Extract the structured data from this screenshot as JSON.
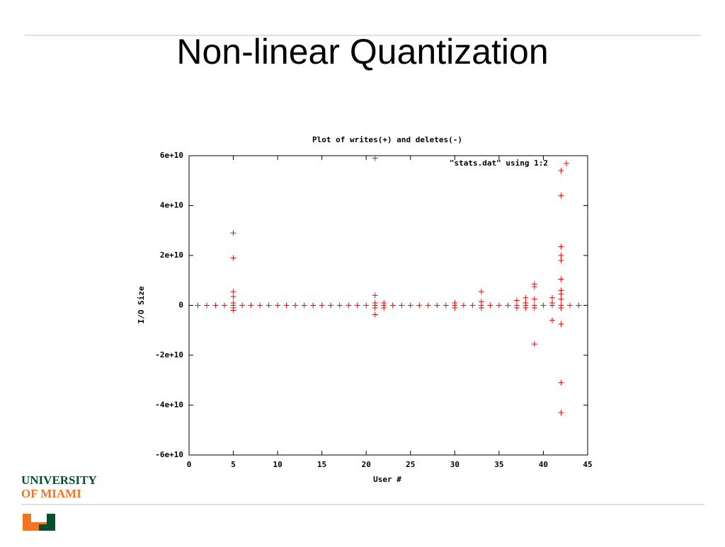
{
  "slide": {
    "title": "Non-linear Quantization",
    "logo_line1": "UNIVERSITY",
    "logo_line2": "OF MIAMI"
  },
  "chart_data": {
    "type": "scatter",
    "title": "Plot of writes(+) and deletes(-)",
    "x_label": "User #",
    "y_label": "I/O Size",
    "xlim": [
      0,
      45
    ],
    "xticks": [
      0,
      5,
      10,
      15,
      20,
      25,
      30,
      35,
      40,
      45
    ],
    "ylim": [
      -60000000000,
      60000000000
    ],
    "yticks": [
      {
        "value": -60000000000,
        "label": "-6e+10"
      },
      {
        "value": -40000000000,
        "label": "-4e+10"
      },
      {
        "value": -20000000000,
        "label": "-2e+10"
      },
      0,
      {
        "value": 20000000000,
        "label": "2e+10"
      },
      {
        "value": 40000000000,
        "label": "4e+10"
      },
      {
        "value": 60000000000,
        "label": "6e+10"
      }
    ],
    "legend": "top-right",
    "series": [
      {
        "name": "\"stats.dat\" using 1:2",
        "color": "#ff0000",
        "x": [
          1,
          2,
          3,
          4,
          5,
          6,
          7,
          8,
          9,
          10,
          11,
          12,
          13,
          14,
          15,
          16,
          17,
          18,
          19,
          20,
          21,
          22,
          23,
          24,
          25,
          26,
          27,
          28,
          29,
          30,
          31,
          32,
          33,
          34,
          35,
          36,
          37,
          38,
          39,
          40,
          41,
          42,
          43,
          44,
          5,
          5,
          5,
          5,
          5,
          5,
          5,
          21,
          21,
          21,
          21,
          21,
          22,
          22,
          30,
          30,
          33,
          33,
          33,
          37,
          37,
          38,
          38,
          38,
          39,
          39,
          39,
          39,
          39,
          41,
          41,
          41,
          42,
          42,
          42,
          42,
          42,
          42,
          42,
          42,
          42,
          42,
          42,
          42,
          42
        ],
        "values": [
          0,
          0,
          0,
          0,
          0,
          0,
          0,
          0,
          0,
          0,
          0,
          0,
          0,
          0,
          0,
          0,
          0,
          0,
          0,
          0,
          0,
          0,
          0,
          0,
          0,
          0,
          0,
          0,
          0,
          0,
          0,
          0,
          0,
          0,
          0,
          0,
          0,
          0,
          0,
          0,
          0,
          0,
          0,
          0,
          29000000000,
          19000000000,
          5500000000,
          3500000000,
          -2000000000,
          1000000000,
          -1000000000,
          59000000000,
          4000000000,
          -3700000000,
          1000000000,
          -1000000000,
          1000000000,
          -1000000000,
          1000000000,
          -1000000000,
          5500000000,
          1500000000,
          -1000000000,
          2000000000,
          -1000000000,
          3000000000,
          1000000000,
          -1000000000,
          8500000000,
          7500000000,
          -15500000000,
          2500000000,
          -1000000000,
          -6000000000,
          3000000000,
          1000000000,
          54000000000,
          44000000000,
          23500000000,
          20000000000,
          18000000000,
          10500000000,
          6000000000,
          4500000000,
          -7500000000,
          -31000000000,
          -43000000000,
          2500000000,
          -1000000000
        ]
      }
    ]
  }
}
